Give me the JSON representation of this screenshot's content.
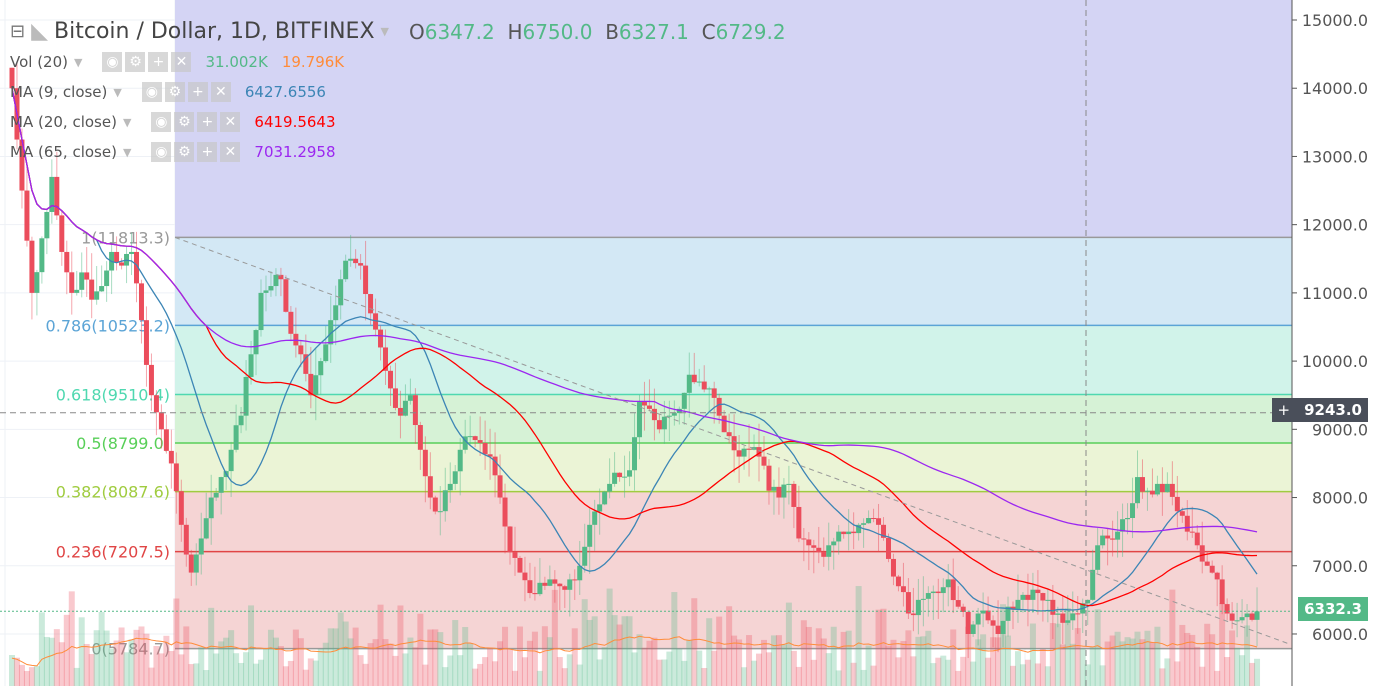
{
  "header": {
    "symbol": "Bitcoin / Dollar, 1D, BITFINEX",
    "o_label": "O",
    "o": "6347.2",
    "h_label": "H",
    "h": "6750.0",
    "b_label": "B",
    "b": "6327.1",
    "c_label": "C",
    "c": "6729.2"
  },
  "indicators": [
    {
      "label": "Vol (20)",
      "values": [
        "31.002K",
        "19.796K"
      ],
      "colors": [
        "#53b987",
        "#ff8c3a"
      ]
    },
    {
      "label": "MA (9, close)",
      "values": [
        "6427.6556"
      ],
      "colors": [
        "#3c85b5"
      ]
    },
    {
      "label": "MA (20, close)",
      "values": [
        "6419.5643"
      ],
      "colors": [
        "#ff0000"
      ]
    },
    {
      "label": "MA (65, close)",
      "values": [
        "7031.2958"
      ],
      "colors": [
        "#9c27f0"
      ]
    }
  ],
  "price_labels": {
    "crosshair": "9243.0",
    "last": "6332.3"
  },
  "chart_data": {
    "type": "candlestick",
    "ylim": [
      5500,
      15200
    ],
    "yticks": [
      "6000.0",
      "7000.0",
      "8000.0",
      "9000.0",
      "10000.0",
      "11000.0",
      "12000.0",
      "13000.0",
      "14000.0",
      "15000.0"
    ],
    "fib": [
      {
        "label": "1(11813.3)",
        "price": 11813.3,
        "color": "#999999",
        "fill": "#e4e4e4"
      },
      {
        "label": "0.786(10523.2)",
        "price": 10523.2,
        "color": "#5ba4d6",
        "fill": "#d3e8f5"
      },
      {
        "label": "0.618(9510.4)",
        "price": 9510.4,
        "color": "#4fd8b0",
        "fill": "#d1f3ea"
      },
      {
        "label": "0.5(8799.0)",
        "price": 8799.0,
        "color": "#58cf58",
        "fill": "#d6f2d6"
      },
      {
        "label": "0.382(8087.6)",
        "price": 8087.6,
        "color": "#a0cc40",
        "fill": "#ebf4d6"
      },
      {
        "label": "0.236(7207.5)",
        "price": 7207.5,
        "color": "#e04545",
        "fill": "#f5d4d4"
      },
      {
        "label": "0(5784.7)",
        "price": 5784.7,
        "color": "#999999",
        "fill": "#f5d4d4"
      }
    ],
    "upper_fill": "#d4d4f4",
    "crosshair_price": 9243.0,
    "last_price": 6332.3,
    "closes": [
      14000,
      12500,
      11000,
      11800,
      12700,
      11600,
      11000,
      11300,
      10900,
      11100,
      11600,
      11400,
      11600,
      10600,
      9500,
      9000,
      8500,
      7600,
      6900,
      7400,
      8000,
      8300,
      8700,
      9200,
      10100,
      11000,
      11100,
      11200,
      10400,
      10100,
      9500,
      10000,
      10600,
      11200,
      11500,
      11400,
      10700,
      10200,
      9600,
      9200,
      9500,
      8700,
      8000,
      7800,
      8200,
      8700,
      8900,
      8800,
      8600,
      8000,
      7200,
      6900,
      6600,
      6750,
      6800,
      6700,
      6800,
      7000,
      7600,
      7900,
      8200,
      8300,
      8400,
      9400,
      9300,
      9000,
      9200,
      9300,
      9800,
      9700,
      9600,
      9200,
      8900,
      8600,
      8700,
      8600,
      8100,
      8000,
      8200,
      7400,
      7300,
      7200,
      7300,
      7500,
      7500,
      7600,
      7700,
      7600,
      7100,
      6700,
      6300,
      6500,
      6600,
      6600,
      6800,
      6400,
      6000,
      6300,
      6200,
      6000,
      6400,
      6500,
      6500,
      6600,
      6500,
      6300,
      6200,
      6300,
      6500,
      7300,
      7400,
      7500,
      7700,
      8300,
      8100,
      8200,
      8200,
      7800,
      7500,
      7300,
      7000,
      6800,
      6300,
      6200,
      6300,
      6332
    ],
    "ma_colors": {
      "ma9": "#3c85b5",
      "ma20": "#ff0000",
      "ma65": "#9c27f0"
    },
    "up_color": "#53b987",
    "down_color": "#eb4d5c"
  }
}
